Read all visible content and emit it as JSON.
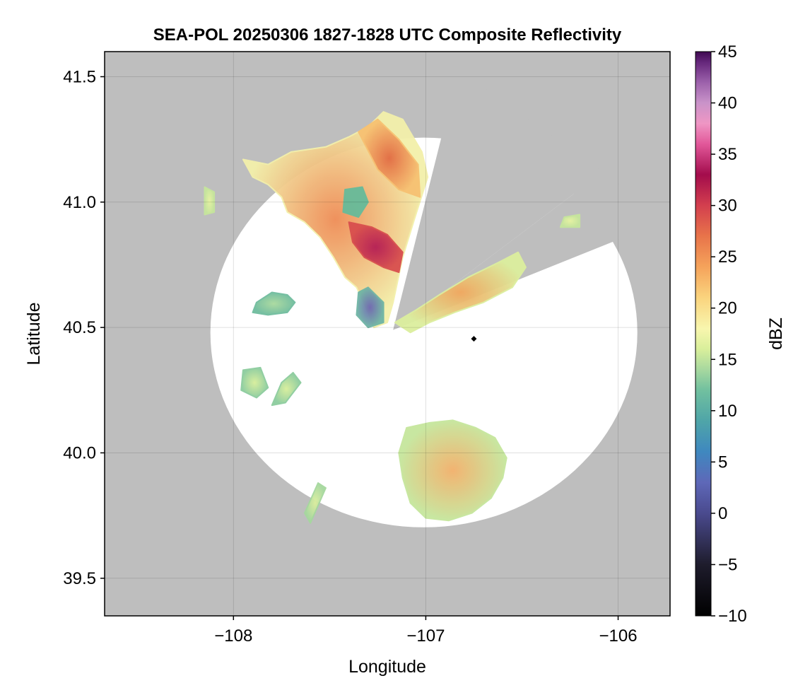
{
  "chart_data": {
    "type": "heatmap",
    "title": "SEA-POL 20250306 1827-1828 UTC Composite Reflectivity",
    "xlabel": "Longitude",
    "ylabel": "Latitude",
    "xlim": [
      -108.67,
      -105.73
    ],
    "ylim": [
      39.35,
      41.6
    ],
    "xticks": [
      -108,
      -107,
      -106
    ],
    "xtick_labels": [
      "−108",
      "−107",
      "−106"
    ],
    "yticks": [
      39.5,
      40.0,
      40.5,
      41.0,
      41.5
    ],
    "ytick_labels": [
      "39.5",
      "40.0",
      "40.5",
      "41.0",
      "41.5"
    ],
    "grid": true,
    "no_data_color": "#bebebe",
    "radar": {
      "center_lon": -107.01,
      "center_lat": 40.48,
      "range_deg": 1.11,
      "blocked_sectors": [
        {
          "from_lon": -106.83,
          "from_lat": 41.53,
          "to_lon": -106.08,
          "to_lat": 41.12
        },
        {
          "from_lon": -106.08,
          "from_lat": 41.12,
          "to_lon": -105.74,
          "to_lat": 40.93
        }
      ],
      "wedge_apex": {
        "lon": -107.17,
        "lat": 40.49
      },
      "site_marker": {
        "lon": -106.75,
        "lat": 40.455,
        "color": "#000000"
      }
    },
    "colorbar": {
      "label": "dBZ",
      "min": -10,
      "max": 45,
      "ticks": [
        -10,
        -5,
        0,
        5,
        10,
        15,
        20,
        25,
        30,
        35,
        40,
        45
      ],
      "tick_labels": [
        "−10",
        "−5",
        "0",
        "5",
        "10",
        "15",
        "20",
        "25",
        "30",
        "35",
        "40",
        "45"
      ],
      "colormap": "spectral_reversed_extended",
      "stops": [
        {
          "value": -10,
          "color": "#000000"
        },
        {
          "value": -5,
          "color": "#1e1c2c"
        },
        {
          "value": 0,
          "color": "#4a4a8e"
        },
        {
          "value": 3,
          "color": "#5e68b8"
        },
        {
          "value": 6,
          "color": "#3f88bf"
        },
        {
          "value": 9,
          "color": "#4fa5a8"
        },
        {
          "value": 12,
          "color": "#71c09f"
        },
        {
          "value": 14,
          "color": "#a7d89f"
        },
        {
          "value": 16,
          "color": "#d9ef9b"
        },
        {
          "value": 18,
          "color": "#f8f6ae"
        },
        {
          "value": 21,
          "color": "#fad47e"
        },
        {
          "value": 24,
          "color": "#f5a35b"
        },
        {
          "value": 27,
          "color": "#e8744a"
        },
        {
          "value": 30,
          "color": "#d33f4e"
        },
        {
          "value": 33,
          "color": "#a30c4c"
        },
        {
          "value": 36,
          "color": "#e2589a"
        },
        {
          "value": 38,
          "color": "#ef96c4"
        },
        {
          "value": 40,
          "color": "#c993c9"
        },
        {
          "value": 42,
          "color": "#9c61ab"
        },
        {
          "value": 44,
          "color": "#64267a"
        },
        {
          "value": 45,
          "color": "#3f0950"
        }
      ]
    },
    "echo_regions": [
      {
        "name": "northwest complex",
        "polygon": [
          [
            -107.95,
            41.17
          ],
          [
            -107.82,
            41.15
          ],
          [
            -107.7,
            41.2
          ],
          [
            -107.52,
            41.22
          ],
          [
            -107.4,
            41.26
          ],
          [
            -107.3,
            41.3
          ],
          [
            -107.22,
            41.36
          ],
          [
            -107.12,
            41.33
          ],
          [
            -107.02,
            41.2
          ],
          [
            -106.99,
            41.1
          ],
          [
            -107.06,
            40.93
          ],
          [
            -107.12,
            40.78
          ],
          [
            -107.17,
            40.6
          ],
          [
            -107.2,
            40.52
          ],
          [
            -107.27,
            40.5
          ],
          [
            -107.3,
            40.56
          ],
          [
            -107.36,
            40.66
          ],
          [
            -107.42,
            40.7
          ],
          [
            -107.48,
            40.78
          ],
          [
            -107.55,
            40.86
          ],
          [
            -107.63,
            40.92
          ],
          [
            -107.72,
            40.96
          ],
          [
            -107.75,
            41.02
          ],
          [
            -107.82,
            41.07
          ],
          [
            -107.9,
            41.1
          ]
        ],
        "core_color": "#ef8c55",
        "edge_color": "#f3f0aa"
      },
      {
        "name": "northwest core",
        "polygon": [
          [
            -107.4,
            40.92
          ],
          [
            -107.28,
            40.9
          ],
          [
            -107.2,
            40.87
          ],
          [
            -107.12,
            40.8
          ],
          [
            -107.14,
            40.72
          ],
          [
            -107.22,
            40.74
          ],
          [
            -107.32,
            40.78
          ],
          [
            -107.38,
            40.84
          ]
        ],
        "core_color": "#b41d55",
        "edge_color": "#d84e4e"
      },
      {
        "name": "north cell",
        "polygon": [
          [
            -107.35,
            41.28
          ],
          [
            -107.25,
            41.33
          ],
          [
            -107.14,
            41.25
          ],
          [
            -107.04,
            41.15
          ],
          [
            -107.03,
            41.02
          ],
          [
            -107.14,
            41.05
          ],
          [
            -107.25,
            41.13
          ]
        ],
        "core_color": "#e26b43",
        "edge_color": "#f7c172"
      },
      {
        "name": "green patch",
        "polygon": [
          [
            -107.42,
            41.05
          ],
          [
            -107.33,
            41.06
          ],
          [
            -107.3,
            41.0
          ],
          [
            -107.35,
            40.94
          ],
          [
            -107.43,
            40.96
          ]
        ],
        "core_color": "#66bb9a",
        "edge_color": "#66bb9a"
      },
      {
        "name": "southwest fringe",
        "polygon": [
          [
            -107.35,
            40.64
          ],
          [
            -107.3,
            40.66
          ],
          [
            -107.22,
            40.6
          ],
          [
            -107.22,
            40.52
          ],
          [
            -107.3,
            40.5
          ],
          [
            -107.36,
            40.55
          ]
        ],
        "core_color": "#6e66b2",
        "edge_color": "#6fb5a5"
      },
      {
        "name": "east band",
        "polygon": [
          [
            -107.16,
            40.52
          ],
          [
            -107.05,
            40.57
          ],
          [
            -106.93,
            40.63
          ],
          [
            -106.78,
            40.7
          ],
          [
            -106.62,
            40.76
          ],
          [
            -106.52,
            40.8
          ],
          [
            -106.48,
            40.74
          ],
          [
            -106.55,
            40.66
          ],
          [
            -106.7,
            40.6
          ],
          [
            -106.85,
            40.56
          ],
          [
            -106.98,
            40.52
          ],
          [
            -107.08,
            40.48
          ]
        ],
        "core_color": "#f2a85e",
        "edge_color": "#dcef9e"
      },
      {
        "name": "west cell",
        "polygon": [
          [
            -107.88,
            40.6
          ],
          [
            -107.8,
            40.64
          ],
          [
            -107.72,
            40.63
          ],
          [
            -107.68,
            40.6
          ],
          [
            -107.72,
            40.56
          ],
          [
            -107.82,
            40.55
          ],
          [
            -107.9,
            40.56
          ]
        ],
        "core_color": "#a9d99e",
        "edge_color": "#6fbc9e"
      },
      {
        "name": "southwest cells",
        "polygon": [
          [
            -107.95,
            40.33
          ],
          [
            -107.86,
            40.34
          ],
          [
            -107.82,
            40.26
          ],
          [
            -107.88,
            40.22
          ],
          [
            -107.96,
            40.25
          ]
        ],
        "core_color": "#d7ee9a",
        "edge_color": "#8ccc9e"
      },
      {
        "name": "southwest cell b",
        "polygon": [
          [
            -107.75,
            40.28
          ],
          [
            -107.69,
            40.32
          ],
          [
            -107.65,
            40.28
          ],
          [
            -107.73,
            40.2
          ],
          [
            -107.8,
            40.19
          ]
        ],
        "core_color": "#d7ee9a",
        "edge_color": "#8ccc9e"
      },
      {
        "name": "south complex",
        "polygon": [
          [
            -107.1,
            40.1
          ],
          [
            -106.98,
            40.12
          ],
          [
            -106.86,
            40.13
          ],
          [
            -106.74,
            40.1
          ],
          [
            -106.64,
            40.06
          ],
          [
            -106.58,
            39.98
          ],
          [
            -106.6,
            39.9
          ],
          [
            -106.66,
            39.82
          ],
          [
            -106.76,
            39.76
          ],
          [
            -106.88,
            39.73
          ],
          [
            -107.0,
            39.74
          ],
          [
            -107.08,
            39.8
          ],
          [
            -107.12,
            39.9
          ],
          [
            -107.14,
            40.0
          ]
        ],
        "core_color": "#f2b06a",
        "edge_color": "#c6e69c"
      },
      {
        "name": "south streak",
        "polygon": [
          [
            -107.56,
            39.88
          ],
          [
            -107.52,
            39.86
          ],
          [
            -107.6,
            39.72
          ],
          [
            -107.63,
            39.76
          ]
        ],
        "core_color": "#dcef9e",
        "edge_color": "#a5d89e"
      },
      {
        "name": "northeast fragments",
        "polygon": [
          [
            -106.28,
            40.94
          ],
          [
            -106.2,
            40.95
          ],
          [
            -106.2,
            40.9
          ],
          [
            -106.3,
            40.9
          ]
        ],
        "core_color": "#e7f4a2",
        "edge_color": "#c6e69c"
      },
      {
        "name": "north fragment",
        "polygon": [
          [
            -108.15,
            41.06
          ],
          [
            -108.1,
            41.04
          ],
          [
            -108.1,
            40.96
          ],
          [
            -108.15,
            40.95
          ]
        ],
        "core_color": "#e7f4a2",
        "edge_color": "#c6e69c"
      }
    ]
  }
}
